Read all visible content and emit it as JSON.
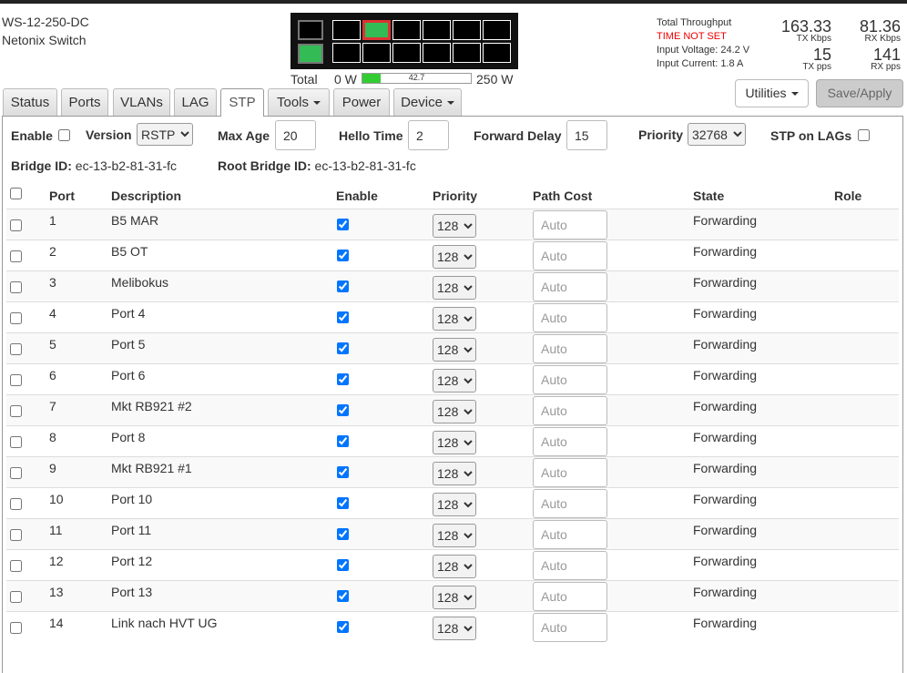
{
  "header": {
    "model": "WS-12-250-DC",
    "name": "Netonix Switch"
  },
  "power": {
    "label": "Total",
    "min_label": "0 W",
    "value": 42.7,
    "max_label": "250 W"
  },
  "status": {
    "throughput_label": "Total Throughput",
    "time_warning": "TIME NOT SET",
    "voltage": "Input Voltage: 24.2 V",
    "current": "Input Current: 1.8 A",
    "tx_kbps": 163.33,
    "tx_kbps_label": "TX Kbps",
    "rx_kbps": 81.36,
    "rx_kbps_label": "RX Kbps",
    "tx_pps": 15,
    "tx_pps_label": "TX pps",
    "rx_pps": 141,
    "rx_pps_label": "RX pps"
  },
  "tabs": [
    "Status",
    "Ports",
    "VLANs",
    "LAG",
    "STP",
    "Tools",
    "Power",
    "Device"
  ],
  "buttons": {
    "utilities": "Utilities",
    "save": "Save/Apply"
  },
  "settings": {
    "enable_label": "Enable",
    "version_label": "Version",
    "version": "RSTP",
    "max_age_label": "Max Age",
    "max_age": 20,
    "hello_time_label": "Hello Time",
    "hello_time": 2,
    "forward_delay_label": "Forward Delay",
    "forward_delay": 15,
    "priority_label": "Priority",
    "priority": 32768,
    "lags_label": "STP on LAGs",
    "bridge_id_label": "Bridge ID:",
    "bridge_id": "ec-13-b2-81-31-fc",
    "root_bridge_id_label": "Root Bridge ID:",
    "root_bridge_id": "ec-13-b2-81-31-fc"
  },
  "table": {
    "headers": [
      "Port",
      "Description",
      "Enable",
      "Priority",
      "Path Cost",
      "State",
      "Role"
    ],
    "rows": [
      {
        "port": 1,
        "description": "B5 MAR",
        "priority": 128,
        "path_cost": "Auto",
        "state": "Forwarding"
      },
      {
        "port": 2,
        "description": "B5 OT",
        "priority": 128,
        "path_cost": "Auto",
        "state": "Forwarding"
      },
      {
        "port": 3,
        "description": "Melibokus",
        "priority": 128,
        "path_cost": "Auto",
        "state": "Forwarding"
      },
      {
        "port": 4,
        "description": "Port 4",
        "priority": 128,
        "path_cost": "Auto",
        "state": "Forwarding"
      },
      {
        "port": 5,
        "description": "Port 5",
        "priority": 128,
        "path_cost": "Auto",
        "state": "Forwarding"
      },
      {
        "port": 6,
        "description": "Port 6",
        "priority": 128,
        "path_cost": "Auto",
        "state": "Forwarding"
      },
      {
        "port": 7,
        "description": "Mkt RB921 #2",
        "priority": 128,
        "path_cost": "Auto",
        "state": "Forwarding"
      },
      {
        "port": 8,
        "description": "Port 8",
        "priority": 128,
        "path_cost": "Auto",
        "state": "Forwarding"
      },
      {
        "port": 9,
        "description": "Mkt RB921 #1",
        "priority": 128,
        "path_cost": "Auto",
        "state": "Forwarding"
      },
      {
        "port": 10,
        "description": "Port 10",
        "priority": 128,
        "path_cost": "Auto",
        "state": "Forwarding"
      },
      {
        "port": 11,
        "description": "Port 11",
        "priority": 128,
        "path_cost": "Auto",
        "state": "Forwarding"
      },
      {
        "port": 12,
        "description": "Port 12",
        "priority": 128,
        "path_cost": "Auto",
        "state": "Forwarding"
      },
      {
        "port": 13,
        "description": "Port 13",
        "priority": 128,
        "path_cost": "Auto",
        "state": "Forwarding"
      },
      {
        "port": 14,
        "description": "Link nach HVT UG",
        "priority": 128,
        "path_cost": "Auto",
        "state": "Forwarding"
      }
    ]
  }
}
